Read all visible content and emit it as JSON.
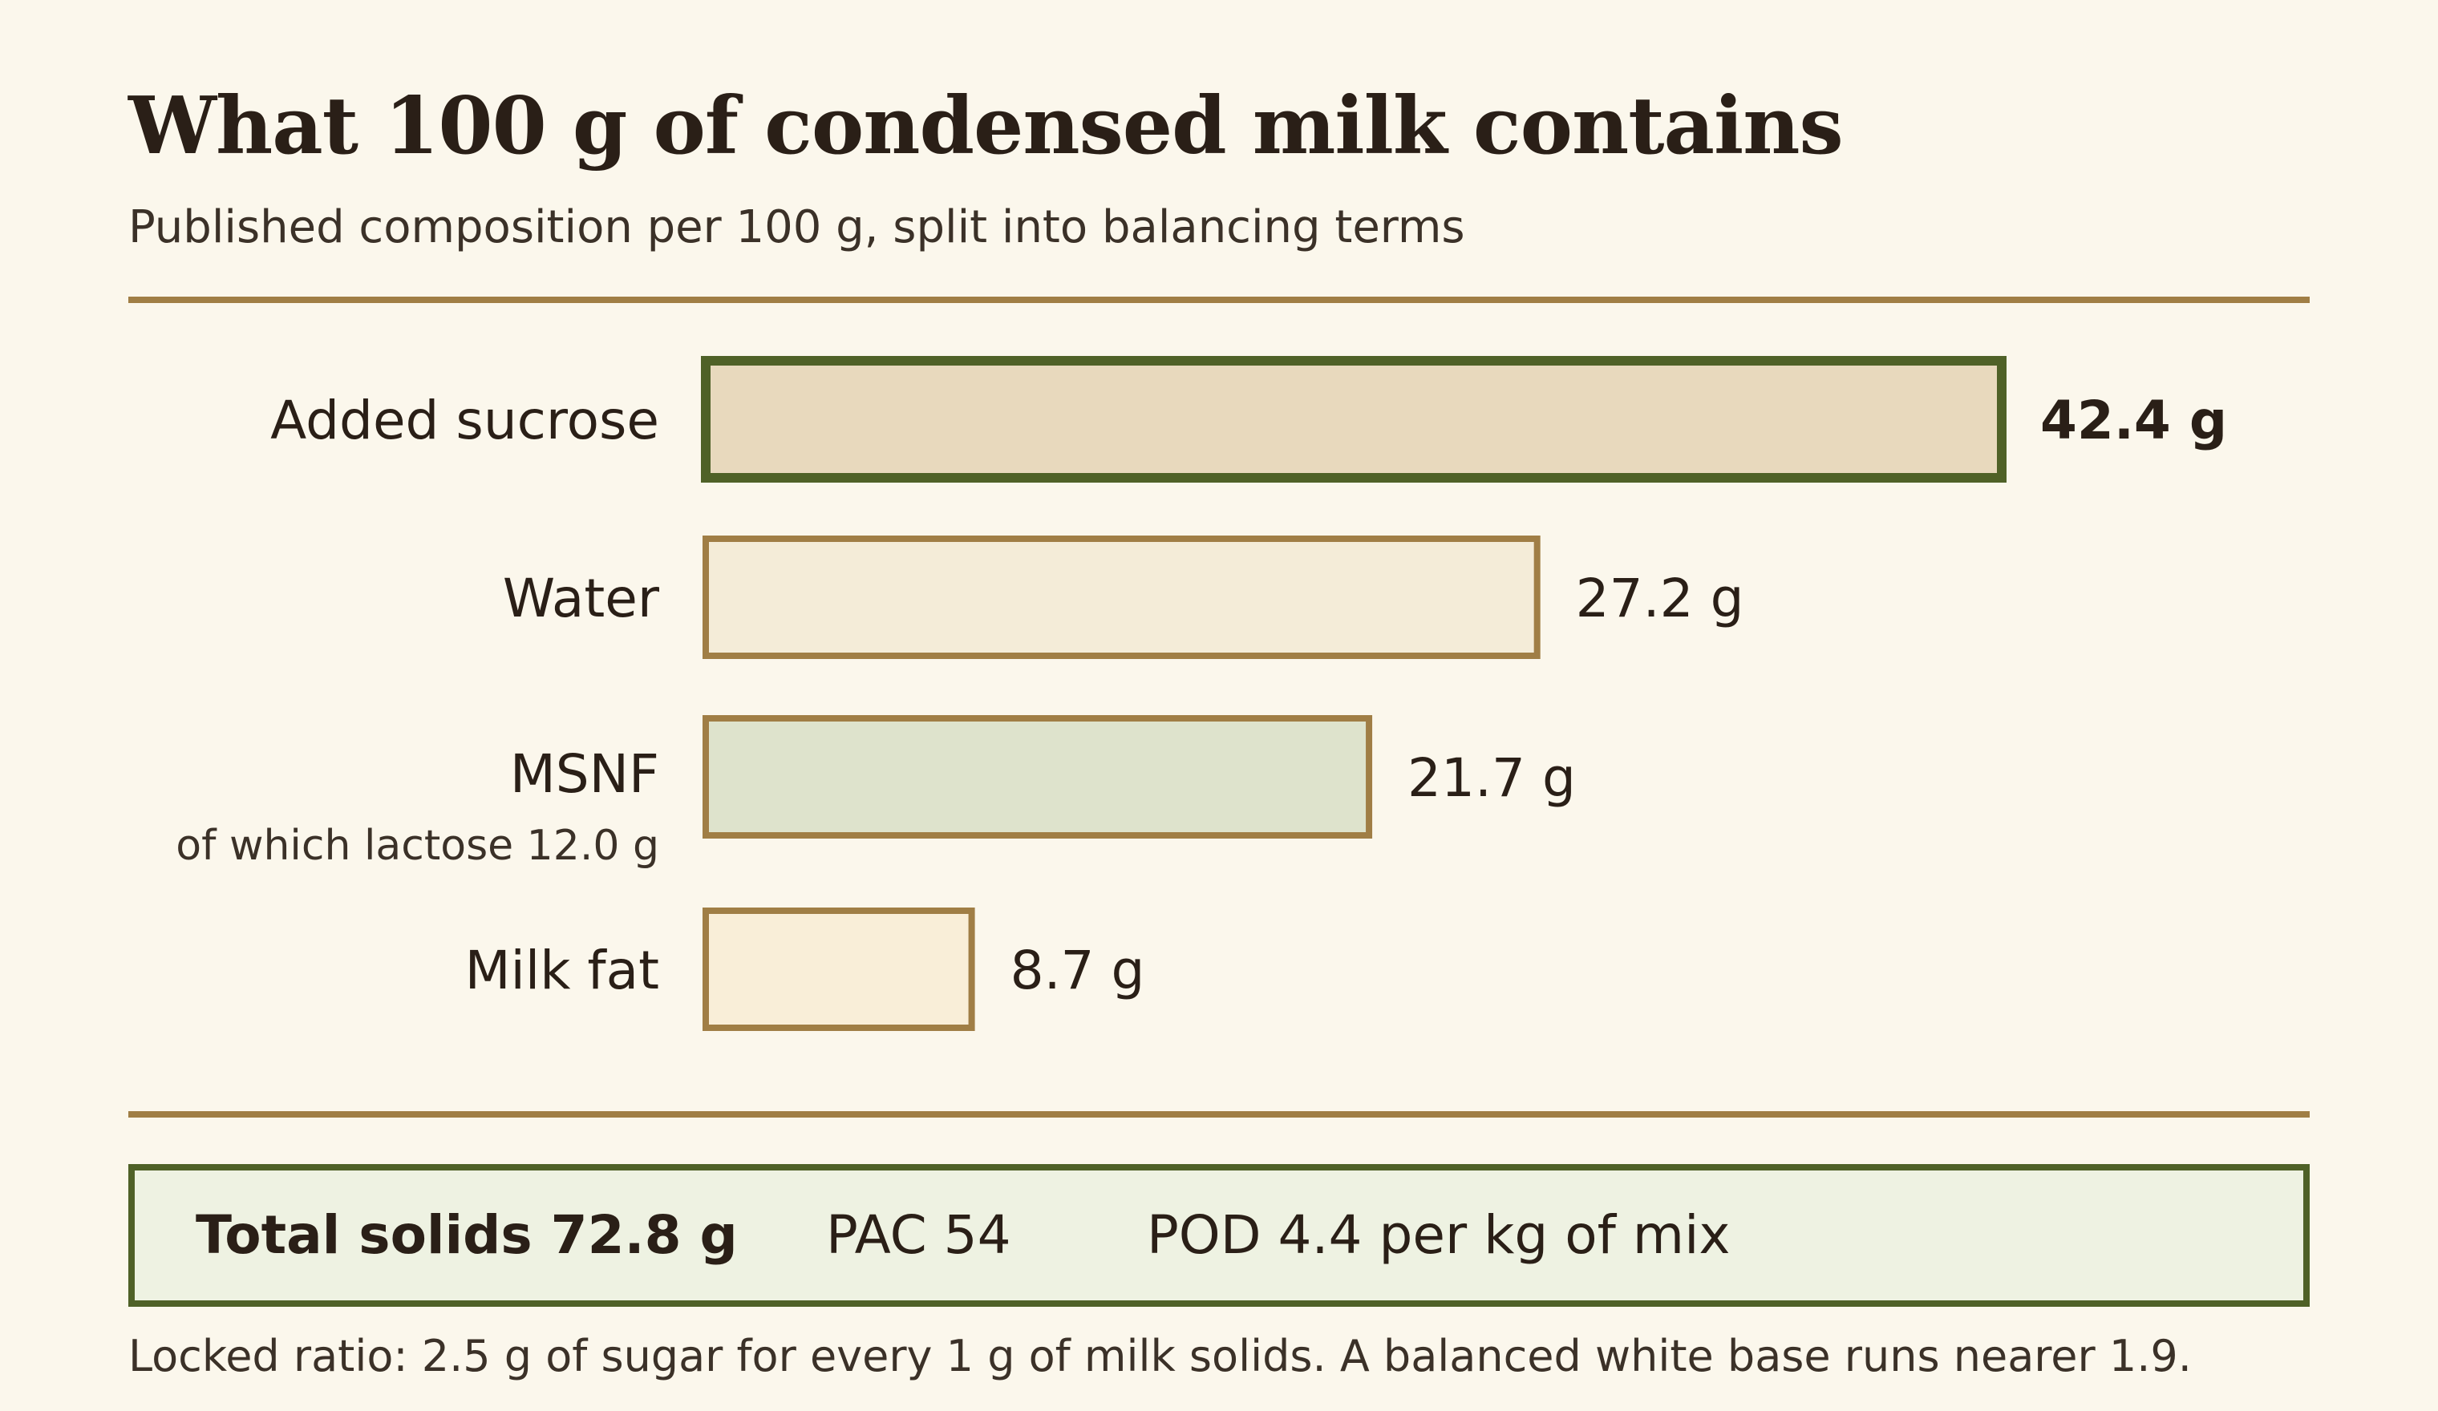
{
  "chart_data": {
    "type": "bar",
    "orientation": "horizontal",
    "title": "What 100 g of condensed milk contains",
    "subtitle": "Published composition per 100 g, split into balancing terms",
    "unit": "g",
    "categories": [
      "Added sucrose",
      "Water",
      "MSNF",
      "Milk fat"
    ],
    "values": [
      42.4,
      27.2,
      21.7,
      8.7
    ],
    "value_labels": [
      "42.4 g",
      "27.2 g",
      "21.7 g",
      "8.7 g"
    ],
    "sublabels": [
      "",
      "",
      "of which lactose 12.0 g",
      ""
    ],
    "highlighted": [
      true,
      false,
      false,
      false
    ],
    "fill_colors": [
      "#e8d9bd",
      "#f4ecd8",
      "#dee3cc",
      "#f9eed8"
    ],
    "border_colors": [
      "#4f6127",
      "#a07e45",
      "#a07e45",
      "#a07e45"
    ],
    "xlim": [
      0,
      42.4
    ],
    "grid": false,
    "legend": "none"
  },
  "summary": {
    "total_solids": "Total solids 72.8 g",
    "pac": "PAC 54",
    "pod": "POD 4.4 per kg of mix"
  },
  "footnote": "Locked ratio: 2.5 g of sugar for every 1 g of milk solids. A balanced white base runs nearer 1.9.",
  "colors": {
    "background": "#fbf7ec",
    "rule": "#a07e45",
    "accent_green": "#4f6127",
    "summary_fill": "#eef2e2",
    "text": "#2a1f17"
  }
}
